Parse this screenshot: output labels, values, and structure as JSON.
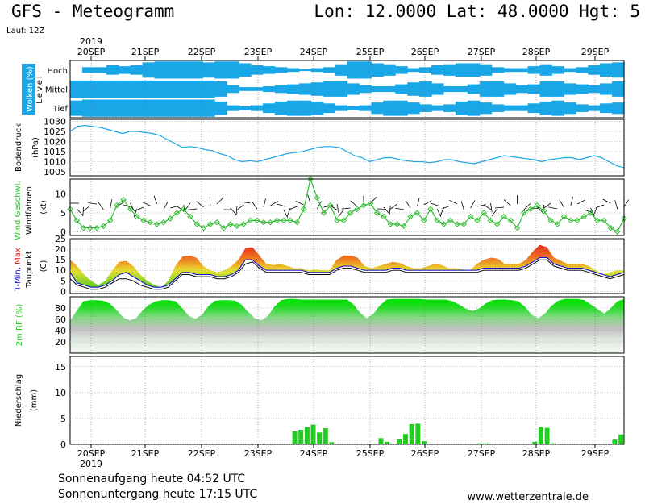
{
  "header": {
    "title": "GFS - Meteogramm",
    "coords": "Lon: 12.0000  Lat: 48.0000  Hgt: 5",
    "run": "Lauf: 12Z"
  },
  "footer": {
    "sunrise": "Sonnenaufgang heute 04:52 UTC",
    "sunset": "Sonnenuntergang heute 17:15 UTC",
    "credit": "www.wetterzentrale.de"
  },
  "colors": {
    "cloud": "#1aa7e8",
    "pressure": "#1aa7e8",
    "wind": "#2ebd2e",
    "tmin": "#1010d0",
    "tmax": "#e0201a",
    "dewpoint": "#000000",
    "humidity": "#22cc22",
    "precip": "#22cc22"
  },
  "chart_data": {
    "type": "line",
    "year": "2019",
    "x_labels": [
      "20SEP",
      "21SEP",
      "22SEP",
      "23SEP",
      "24SEP",
      "25SEP",
      "26SEP",
      "27SEP",
      "28SEP",
      "29SEP"
    ],
    "x_step_hours": 6,
    "x_start": "20SEP 00UTC (approx. 19SEP 12UTC first point)",
    "panels": [
      {
        "id": "clouds",
        "ylabel": "Wolken (%)",
        "ylabel2": "Level",
        "levels": [
          "Hoch",
          "Mittel",
          "Tief"
        ],
        "cover_high": [
          0,
          0.3,
          0.3,
          0.5,
          0.4,
          0.5,
          0.8,
          0.9,
          0.9,
          0.9,
          0.9,
          0.8,
          0.9,
          0.9,
          0.7,
          0.5,
          0.4,
          0.3,
          0.2,
          0.1,
          0.2,
          0.3,
          0.6,
          0.9,
          0.9,
          0.7,
          0.6,
          0.4,
          0.2,
          0.3,
          0.5,
          0.6,
          0.7,
          0.7,
          0.6,
          0.3,
          0.2,
          0.2,
          0.4,
          0.6,
          0.4,
          0.2,
          0.3,
          0.5,
          0.7,
          0.8
        ],
        "cover_mid": [
          0.9,
          0.9,
          0.9,
          0.9,
          0.9,
          0.9,
          0.9,
          0.9,
          0.9,
          0.9,
          0.9,
          0.9,
          0.8,
          0.4,
          0.2,
          0.2,
          0.3,
          0.4,
          0.5,
          0.6,
          0.7,
          0.8,
          0.8,
          0.6,
          0.4,
          0.3,
          0.3,
          0.5,
          0.7,
          0.8,
          0.6,
          0.3,
          0.3,
          0.5,
          0.8,
          0.8,
          0.6,
          0.4,
          0.5,
          0.8,
          0.8,
          0.6,
          0.5,
          0.4,
          0.6,
          0.8
        ],
        "cover_low": [
          0.8,
          0.9,
          0.9,
          0.9,
          0.9,
          0.9,
          0.9,
          0.9,
          0.9,
          0.9,
          0.9,
          0.9,
          0.7,
          0.3,
          0.2,
          0.3,
          0.5,
          0.7,
          0.8,
          0.8,
          0.7,
          0.5,
          0.3,
          0.2,
          0.3,
          0.6,
          0.8,
          0.8,
          0.6,
          0.4,
          0.3,
          0.4,
          0.7,
          0.8,
          0.6,
          0.4,
          0.3,
          0.3,
          0.5,
          0.7,
          0.8,
          0.6,
          0.4,
          0.3,
          0.5,
          0.6
        ]
      },
      {
        "id": "pressure",
        "ylabel": "Bodendruck",
        "unit": "(hPa)",
        "yticks": [
          1005,
          1010,
          1015,
          1020,
          1025,
          1030
        ],
        "ylim": [
          1003,
          1031
        ],
        "values": [
          1025,
          1027.5,
          1028,
          1027.5,
          1027,
          1026,
          1025,
          1024,
          1025,
          1025,
          1024.5,
          1024,
          1023,
          1021,
          1019,
          1017,
          1017.5,
          1017,
          1016,
          1015.5,
          1014,
          1013,
          1011,
          1010,
          1010.5,
          1010,
          1011,
          1012,
          1013,
          1014,
          1014.5,
          1015,
          1016,
          1017,
          1017.5,
          1017.5,
          1017,
          1015,
          1013,
          1012,
          1010,
          1011,
          1012,
          1012,
          1011,
          1010.5,
          1010,
          1010,
          1009.5,
          1010,
          1011,
          1011,
          1010,
          1009.5,
          1009,
          1010,
          1011,
          1012,
          1013,
          1012.5,
          1012,
          1011.5,
          1011,
          1010,
          1011,
          1011.5,
          1012,
          1012,
          1011,
          1012,
          1013,
          1012,
          1010,
          1008,
          1007
        ]
      },
      {
        "id": "wind",
        "ylabel": "Wind Geschwi.",
        "ylabel2": "Windfahnen",
        "unit": "(kt)",
        "yticks": [
          0,
          5,
          10
        ],
        "ylim": [
          -1,
          14
        ],
        "values": [
          6,
          3,
          1,
          1,
          1,
          1.5,
          3,
          7,
          8.5,
          6,
          4,
          3,
          2.5,
          2,
          2.5,
          3.5,
          5,
          6,
          4,
          2,
          1,
          2,
          2.5,
          1,
          2,
          1.5,
          2,
          3,
          3,
          2.5,
          2.5,
          3,
          3,
          3,
          2.5,
          6,
          14,
          9,
          5,
          7,
          3,
          3,
          5,
          6,
          7,
          7.5,
          5,
          4,
          2,
          2,
          1.5,
          4,
          5,
          3,
          6,
          3,
          2,
          3,
          2,
          2,
          4,
          3,
          5,
          3,
          2,
          4,
          3,
          1,
          5,
          6,
          7,
          5.5,
          3,
          2,
          4,
          3,
          3,
          4,
          5,
          3,
          3,
          1,
          0,
          3.5
        ]
      },
      {
        "id": "temperature",
        "ylabel": "T-Min, Max",
        "ylabel2": "Taupunkt",
        "unit": "(C)",
        "yticks": [
          0,
          5,
          10,
          15,
          20,
          25
        ],
        "ylim": [
          -1,
          25
        ],
        "tmax": [
          15,
          12,
          8,
          5,
          3,
          5,
          10,
          14,
          14.5,
          12,
          8,
          5,
          3,
          2,
          5,
          12,
          16.5,
          17,
          16,
          12,
          10,
          9,
          10,
          12,
          15,
          20.5,
          21,
          17,
          13,
          12.5,
          13,
          12,
          11,
          11,
          10,
          10.5,
          10,
          10,
          15,
          17,
          17,
          16,
          12,
          11,
          12,
          13,
          14,
          13.5,
          12,
          11,
          11,
          12,
          13,
          12.5,
          11,
          11,
          10.5,
          10,
          13,
          15,
          16,
          15.5,
          13,
          13,
          13,
          15,
          19,
          22,
          21,
          16,
          14.5,
          13,
          13,
          13,
          12,
          10,
          8,
          9,
          10,
          10
        ],
        "tmin": [
          9,
          4,
          3,
          2,
          2,
          3,
          5,
          8,
          9,
          7,
          5,
          3,
          2,
          2,
          3,
          6,
          9,
          9,
          8,
          8,
          8,
          7,
          7,
          8,
          10,
          15,
          15,
          12,
          10,
          10,
          10,
          10,
          10,
          10,
          9,
          9,
          9,
          9,
          11,
          12,
          12,
          11,
          10,
          10,
          10,
          10,
          11,
          11,
          10,
          10,
          10,
          10,
          10,
          10,
          10,
          10,
          10,
          10,
          10,
          11,
          11,
          11,
          11,
          11,
          11,
          12,
          14,
          16,
          16,
          13,
          12,
          11,
          11,
          11,
          10,
          9,
          8,
          7,
          8,
          9
        ],
        "dewpoint": [
          6,
          3,
          2,
          1,
          1,
          2,
          4,
          6,
          6,
          5,
          3,
          2,
          1,
          1,
          2,
          5,
          8,
          8,
          7,
          7,
          7,
          6,
          6,
          7,
          9,
          13,
          14,
          11,
          9,
          9,
          9,
          9,
          9,
          9,
          8,
          8,
          8,
          8,
          10,
          11,
          11,
          10,
          9,
          9,
          9,
          9,
          10,
          10,
          9,
          9,
          9,
          9,
          9,
          9,
          9,
          9,
          9,
          9,
          9,
          10,
          10,
          10,
          10,
          10,
          10,
          11,
          13,
          15,
          15,
          12,
          11,
          10,
          10,
          10,
          9,
          8,
          7,
          6,
          7,
          8
        ]
      },
      {
        "id": "humidity",
        "ylabel": "2m RF (%)",
        "yticks": [
          20,
          40,
          60,
          80
        ],
        "ylim": [
          0,
          100
        ],
        "values": [
          58,
          75,
          92,
          94,
          94,
          93,
          88,
          77,
          64,
          58,
          62,
          76,
          86,
          92,
          94,
          94,
          92,
          80,
          66,
          61,
          68,
          84,
          93,
          94,
          94,
          93,
          86,
          73,
          62,
          58,
          66,
          83,
          94,
          96,
          96,
          95,
          95,
          95,
          95,
          95,
          95,
          95,
          95,
          86,
          71,
          62,
          70,
          85,
          95,
          96,
          96,
          96,
          96,
          96,
          95,
          95,
          95,
          95,
          92,
          86,
          79,
          75,
          79,
          88,
          94,
          95,
          95,
          94,
          92,
          82,
          68,
          62,
          70,
          84,
          93,
          96,
          96,
          96,
          94,
          86,
          78,
          70,
          80,
          92,
          96
        ]
      },
      {
        "id": "precip",
        "ylabel": "Niederschlag",
        "unit": "(mm)",
        "yticks": [
          0,
          5,
          10,
          15
        ],
        "ylim": [
          0,
          17
        ],
        "values": [
          0,
          0,
          0,
          0,
          0,
          0,
          0,
          0,
          0,
          0,
          0,
          0,
          0,
          0,
          0,
          0,
          0,
          0,
          0,
          0,
          0,
          0,
          0,
          0,
          0,
          0,
          0,
          0,
          0,
          0,
          0,
          0,
          0,
          0,
          0,
          0,
          2.5,
          2.8,
          3.3,
          3.8,
          2.3,
          3.1,
          0.4,
          0,
          0,
          0,
          0,
          0,
          0,
          0,
          1.2,
          0.5,
          0,
          1,
          2,
          3.9,
          4,
          0.6,
          0,
          0,
          0,
          0,
          0,
          0,
          0,
          0,
          0.2,
          0.2,
          0,
          0,
          0,
          0,
          0,
          0,
          0,
          0.5,
          3.3,
          3.2,
          0.2,
          0,
          0,
          0,
          0,
          0,
          0,
          0,
          0,
          0,
          0.9,
          1.9
        ]
      }
    ]
  }
}
